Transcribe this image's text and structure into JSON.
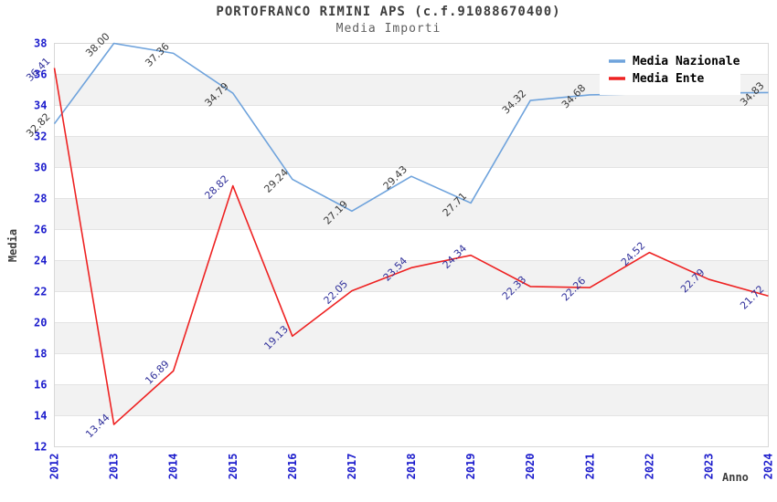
{
  "chart_data": {
    "type": "line",
    "title": "PORTOFRANCO RIMINI APS (c.f.91088670400)",
    "subtitle": "Media Importi",
    "xlabel": "Anno",
    "ylabel": "Media",
    "x": [
      2012,
      2013,
      2014,
      2015,
      2016,
      2017,
      2018,
      2019,
      2020,
      2021,
      2022,
      2023,
      2024
    ],
    "ylim": [
      12,
      38
    ],
    "ytick_step": 2,
    "grid": "horizontal-gridlines-with-alternating-bands",
    "legend_position": "top-right-inside",
    "series": [
      {
        "name": "Media Nazionale",
        "color": "#6fa3dc",
        "label_color": "#3a3a3a",
        "values": [
          32.82,
          38.0,
          37.36,
          34.79,
          29.24,
          27.19,
          29.43,
          27.71,
          34.32,
          34.68,
          34.75,
          34.8,
          34.83
        ],
        "labels": [
          "32.82",
          "38.00",
          "37.36",
          "34.79",
          "29.24",
          "27.19",
          "29.43",
          "27.71",
          "34.32",
          "34.68",
          null,
          null,
          "34.83"
        ]
      },
      {
        "name": "Media Ente",
        "color": "#ee2222",
        "label_color": "#31319b",
        "values": [
          36.41,
          13.44,
          16.89,
          28.82,
          19.13,
          22.05,
          23.54,
          24.34,
          22.33,
          22.26,
          24.52,
          22.79,
          21.72
        ],
        "labels": [
          "36.41",
          "13.44",
          "16.89",
          "28.82",
          "19.13",
          "22.05",
          "23.54",
          "24.34",
          "22.33",
          "22.26",
          "24.52",
          "22.79",
          "21.72"
        ]
      }
    ],
    "colors": {
      "axis_tick_text": "#1c1ccc",
      "grid_line": "#e3e3e3",
      "band_fill": "#f2f2f2",
      "plot_border": "#d8d8d8",
      "title_text": "#3d3d3d",
      "subtitle_text": "#5f5f5f",
      "legend_text": "#000000"
    }
  }
}
